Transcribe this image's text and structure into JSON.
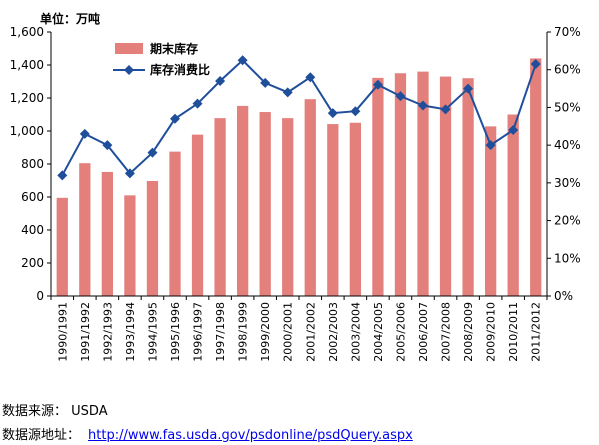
{
  "unit_label": "单位：万吨",
  "footer": {
    "source_label": "数据来源：",
    "source_value": "USDA",
    "address_label": "数据源地址：",
    "address_url": "http://www.fas.usda.gov/psdonline/psdQuery.aspx"
  },
  "chart_data": {
    "type": "bar",
    "categories": [
      "1990/1991",
      "1991/1992",
      "1992/1993",
      "1993/1994",
      "1994/1995",
      "1995/1996",
      "1996/1997",
      "1997/1998",
      "1998/1999",
      "1999/2000",
      "2000/2001",
      "2001/2002",
      "2002/2003",
      "2003/2004",
      "2004/2005",
      "2005/2006",
      "2006/2007",
      "2007/2008",
      "2008/2009",
      "2009/2010",
      "2010/2011",
      "2011/2012"
    ],
    "series": [
      {
        "name": "期末库存",
        "type": "bar",
        "axis": "left",
        "color": "#e4807c",
        "values": [
          595,
          805,
          752,
          610,
          697,
          875,
          978,
          1078,
          1152,
          1115,
          1078,
          1193,
          1042,
          1050,
          1322,
          1350,
          1360,
          1330,
          1320,
          1028,
          1100,
          1440
        ]
      },
      {
        "name": "库存消费比",
        "type": "line",
        "axis": "right",
        "color": "#1f4e9b",
        "marker": "diamond",
        "values": [
          32,
          43,
          40,
          32.5,
          38,
          47,
          51,
          57,
          62.5,
          56.5,
          54,
          58,
          48.5,
          49,
          56,
          53,
          50.5,
          49.5,
          55,
          40,
          44,
          61.5
        ]
      }
    ],
    "y_left": {
      "min": 0,
      "max": 1600,
      "ticks": [
        "0",
        "200",
        "400",
        "600",
        "800",
        "1,000",
        "1,200",
        "1,400",
        "1,600"
      ]
    },
    "y_right": {
      "min": 0,
      "max": 70,
      "ticks": [
        "0%",
        "10%",
        "20%",
        "30%",
        "40%",
        "50%",
        "60%",
        "70%"
      ]
    },
    "legend": "top-left",
    "grid": false
  }
}
